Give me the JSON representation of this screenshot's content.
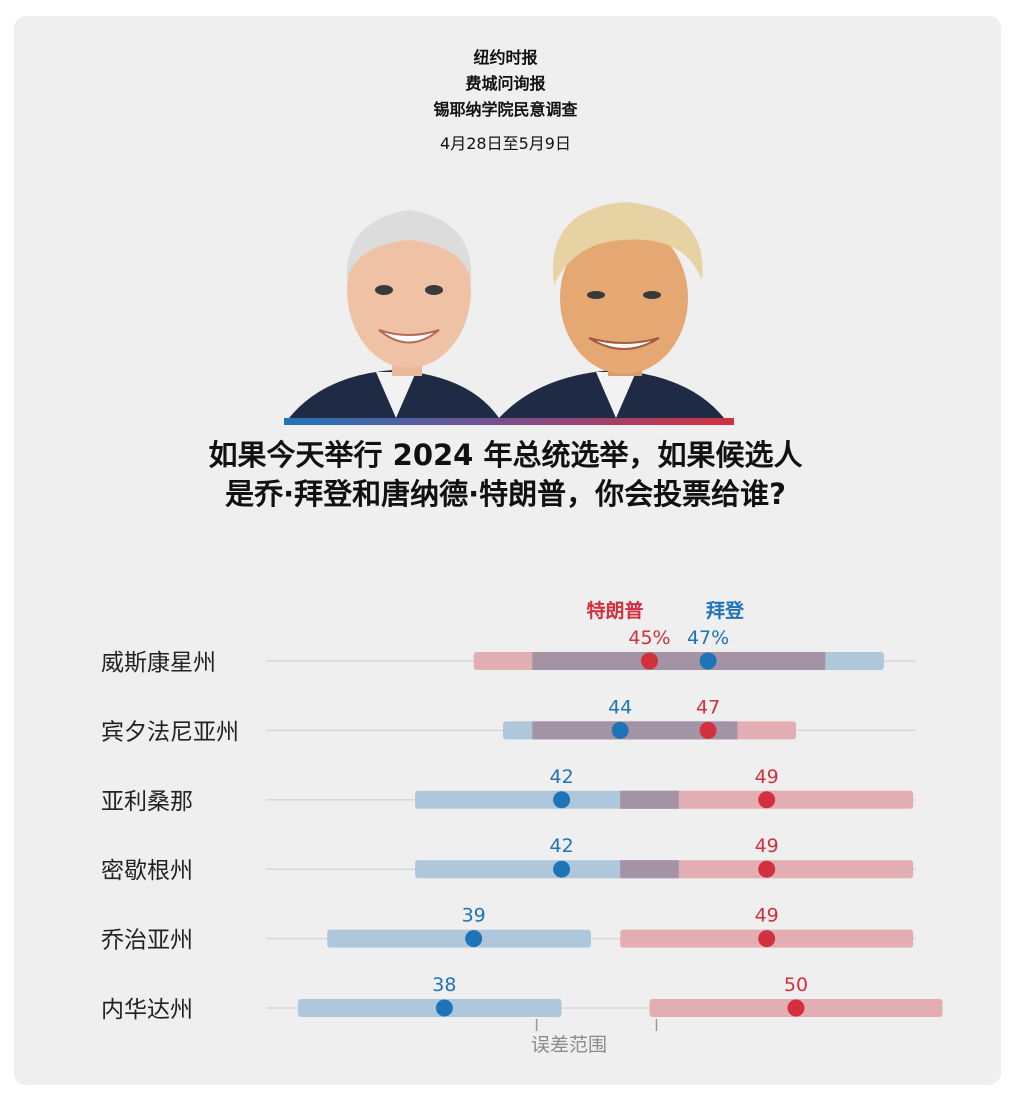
{
  "header": {
    "sources": [
      "纽约时报",
      "费城问询报",
      "锡耶纳学院民意调查"
    ],
    "date": "4月28日至5月9日"
  },
  "question_lines": [
    "如果今天举行 2024 年总统选举，如果候选人",
    "是乔·拜登和唐纳德·特朗普，你会投票给谁?"
  ],
  "colors": {
    "trump": "#d2303d",
    "biden": "#1f73b7",
    "trump_band": "#e3aeb3",
    "biden_band": "#aec7db",
    "overlap": "#a493a4"
  },
  "chart_data": {
    "type": "dot-range",
    "legend": [
      {
        "name": "特朗普",
        "color": "#d2303d"
      },
      {
        "name": "拜登",
        "color": "#1f73b7"
      }
    ],
    "margin_label": "误差范围",
    "rows": [
      {
        "state": "威斯康星州",
        "trump": 45,
        "biden": 47,
        "trump_label": "45%",
        "biden_label": "47%",
        "trump_range": [
          39,
          51
        ],
        "biden_range": [
          41,
          53
        ]
      },
      {
        "state": "宾夕法尼亚州",
        "trump": 47,
        "biden": 44,
        "trump_label": "47",
        "biden_label": "44",
        "trump_range": [
          41,
          50
        ],
        "biden_range": [
          40,
          48
        ]
      },
      {
        "state": "亚利桑那",
        "trump": 49,
        "biden": 42,
        "trump_label": "49",
        "biden_label": "42",
        "trump_range": [
          44,
          54
        ],
        "biden_range": [
          37,
          46
        ]
      },
      {
        "state": "密歇根州",
        "trump": 49,
        "biden": 42,
        "trump_label": "49",
        "biden_label": "42",
        "trump_range": [
          44,
          54
        ],
        "biden_range": [
          37,
          46
        ]
      },
      {
        "state": "乔治亚州",
        "trump": 49,
        "biden": 39,
        "trump_label": "49",
        "biden_label": "39",
        "trump_range": [
          44,
          54
        ],
        "biden_range": [
          34,
          43
        ]
      },
      {
        "state": "内华达州",
        "trump": 50,
        "biden": 38,
        "trump_label": "50",
        "biden_label": "38",
        "trump_range": [
          45,
          55
        ],
        "biden_range": [
          33,
          42
        ]
      }
    ]
  }
}
